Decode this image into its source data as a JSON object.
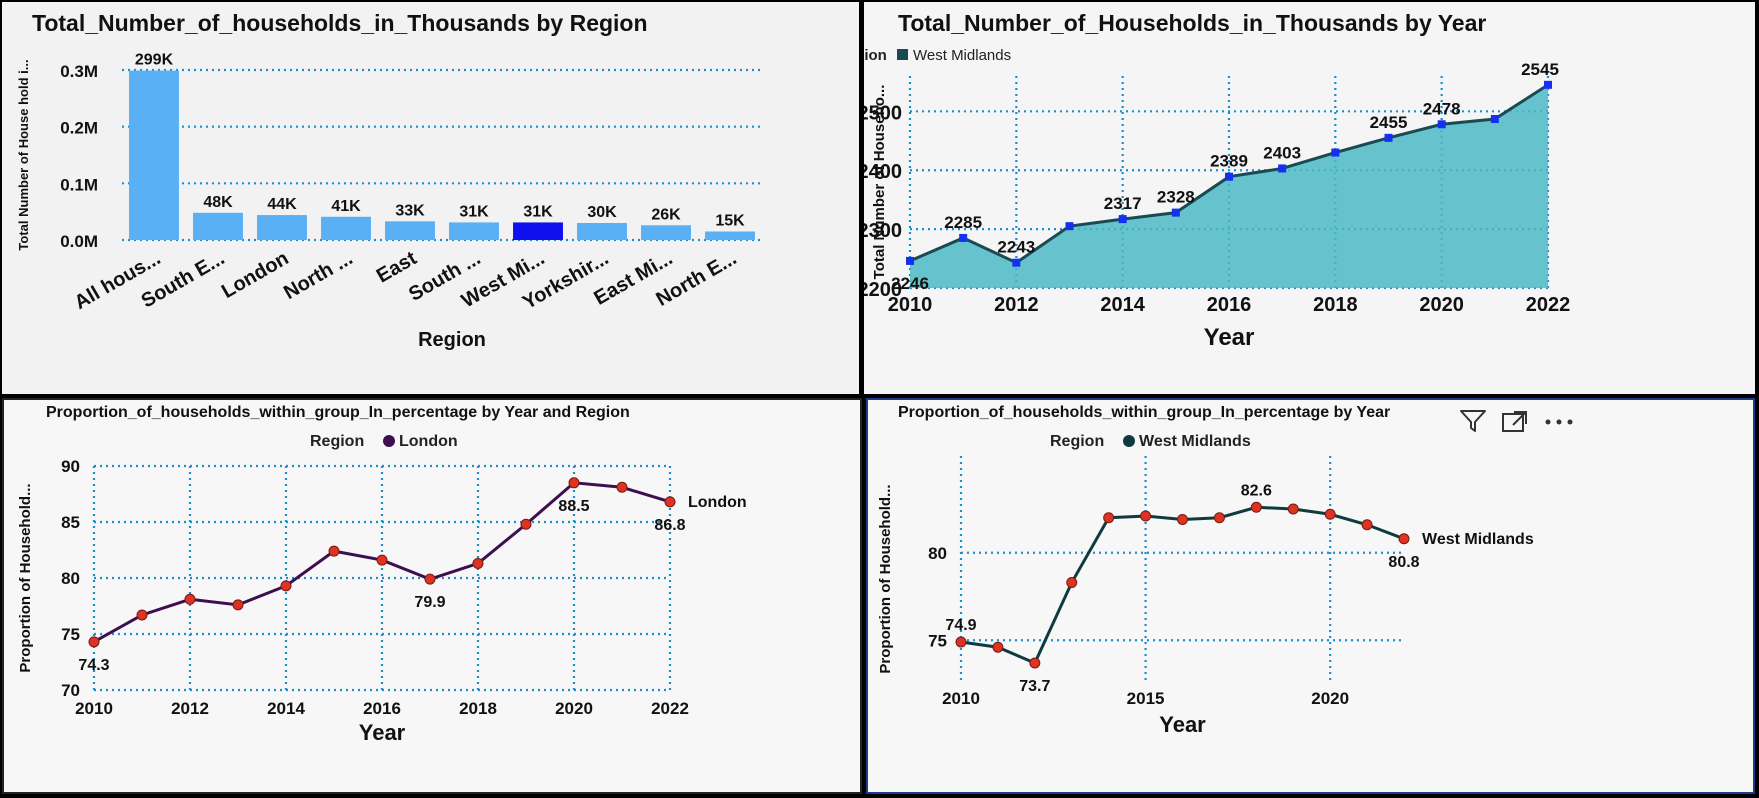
{
  "colors": {
    "bar": "#5ab0f5",
    "bar_highlight": "#1010ee",
    "area_fill": "#4cb8c4",
    "area_line": "#1a4a52",
    "marker_blue": "#1530f0",
    "line_purple": "#3d0f4f",
    "line_dark": "#0e3b40",
    "marker_red": "#dd3322",
    "grid": "#1a8fcf"
  },
  "icons": {
    "filter": "filter-icon",
    "focus": "focus-mode-icon",
    "more": "more-options-icon"
  },
  "chart_data": [
    {
      "type": "bar",
      "title": "Total_Number_of_households_in_Thousands by Region",
      "xlabel": "Region",
      "ylabel": "Total Number of House hold i...",
      "categories": [
        "All hous...",
        "South E...",
        "London",
        "North ...",
        "East",
        "South ...",
        "West Mi...",
        "Yorkshir...",
        "East Mi...",
        "North E..."
      ],
      "values": [
        299,
        48,
        44,
        41,
        33,
        31,
        31,
        30,
        26,
        15
      ],
      "data_labels": [
        "299K",
        "48K",
        "44K",
        "41K",
        "33K",
        "31K",
        "31K",
        "30K",
        "26K",
        "15K"
      ],
      "highlight_index": 6,
      "yticks": [
        0,
        100,
        200,
        300
      ],
      "ytick_labels": [
        "0.0M",
        "0.1M",
        "0.2M",
        "0.3M"
      ],
      "ylim": [
        0,
        300
      ],
      "grid": true
    },
    {
      "type": "area",
      "title": "Total_Number_of_Households_in_Thousands by Year",
      "xlabel": "Year",
      "ylabel": "Total Number of Househo...",
      "legend_title": "Region",
      "legend_position": "top-left",
      "series": [
        {
          "name": "West Midlands",
          "x": [
            2010,
            2011,
            2012,
            2013,
            2014,
            2015,
            2016,
            2017,
            2018,
            2019,
            2020,
            2021,
            2022
          ],
          "values": [
            2246,
            2285,
            2243,
            2305,
            2317,
            2328,
            2389,
            2403,
            2430,
            2455,
            2478,
            2487,
            2545
          ]
        }
      ],
      "point_labels": [
        {
          "x": 2010,
          "text": "2246",
          "pos": "below"
        },
        {
          "x": 2011,
          "text": "2285",
          "pos": "above"
        },
        {
          "x": 2012,
          "text": "2243",
          "pos": "above"
        },
        {
          "x": 2014,
          "text": "2317",
          "pos": "above"
        },
        {
          "x": 2015,
          "text": "2328",
          "pos": "above"
        },
        {
          "x": 2016,
          "text": "2389",
          "pos": "above"
        },
        {
          "x": 2017,
          "text": "2403",
          "pos": "above"
        },
        {
          "x": 2019,
          "text": "2455",
          "pos": "above"
        },
        {
          "x": 2020,
          "text": "2478",
          "pos": "above"
        },
        {
          "x": 2022,
          "text": "2545",
          "pos": "above"
        }
      ],
      "xticks": [
        2010,
        2012,
        2014,
        2016,
        2018,
        2020,
        2022
      ],
      "yticks": [
        2200,
        2300,
        2400,
        2500
      ],
      "ylim": [
        2200,
        2560
      ],
      "xlim": [
        2010,
        2022
      ],
      "grid": true
    },
    {
      "type": "line",
      "title": "Proportion_of_households_within_group_In_percentage by Year and Region",
      "xlabel": "Year",
      "ylabel": "Proportion of Household...",
      "legend_title": "Region",
      "legend_position": "top-center",
      "series": [
        {
          "name": "London",
          "x": [
            2010,
            2011,
            2012,
            2013,
            2014,
            2015,
            2016,
            2017,
            2018,
            2019,
            2020,
            2021,
            2022
          ],
          "values": [
            74.3,
            76.7,
            78.1,
            77.6,
            79.3,
            82.4,
            81.6,
            79.9,
            81.3,
            84.8,
            88.5,
            88.1,
            86.8
          ]
        }
      ],
      "end_label": "London",
      "point_labels": [
        {
          "x": 2010,
          "text": "74.3",
          "pos": "below"
        },
        {
          "x": 2017,
          "text": "79.9",
          "pos": "below"
        },
        {
          "x": 2020,
          "text": "88.5",
          "pos": "below"
        },
        {
          "x": 2022,
          "text": "86.8",
          "pos": "below"
        }
      ],
      "xticks": [
        2010,
        2012,
        2014,
        2016,
        2018,
        2020,
        2022
      ],
      "yticks": [
        70,
        75,
        80,
        85,
        90
      ],
      "ylim": [
        70,
        90
      ],
      "xlim": [
        2010,
        2022
      ],
      "grid": true
    },
    {
      "type": "line",
      "title": "Proportion_of_households_within_group_In_percentage by Year",
      "xlabel": "Year",
      "ylabel": "Proportion of Household...",
      "legend_title": "Region",
      "legend_position": "top-center",
      "series": [
        {
          "name": "West Midlands",
          "x": [
            2010,
            2011,
            2012,
            2013,
            2014,
            2015,
            2016,
            2017,
            2018,
            2019,
            2020,
            2021,
            2022
          ],
          "values": [
            74.9,
            74.6,
            73.7,
            78.3,
            82.0,
            82.1,
            81.9,
            82.0,
            82.6,
            82.5,
            82.2,
            81.6,
            80.8
          ]
        }
      ],
      "end_label": "West Midlands",
      "point_labels": [
        {
          "x": 2010,
          "text": "74.9",
          "pos": "above"
        },
        {
          "x": 2012,
          "text": "73.7",
          "pos": "below"
        },
        {
          "x": 2018,
          "text": "82.6",
          "pos": "above"
        },
        {
          "x": 2022,
          "text": "80.8",
          "pos": "below"
        }
      ],
      "xticks": [
        2010,
        2015,
        2020
      ],
      "yticks": [
        75,
        80
      ],
      "ylim": [
        72.5,
        84.5
      ],
      "xlim": [
        2010,
        2022
      ],
      "grid": true
    }
  ]
}
